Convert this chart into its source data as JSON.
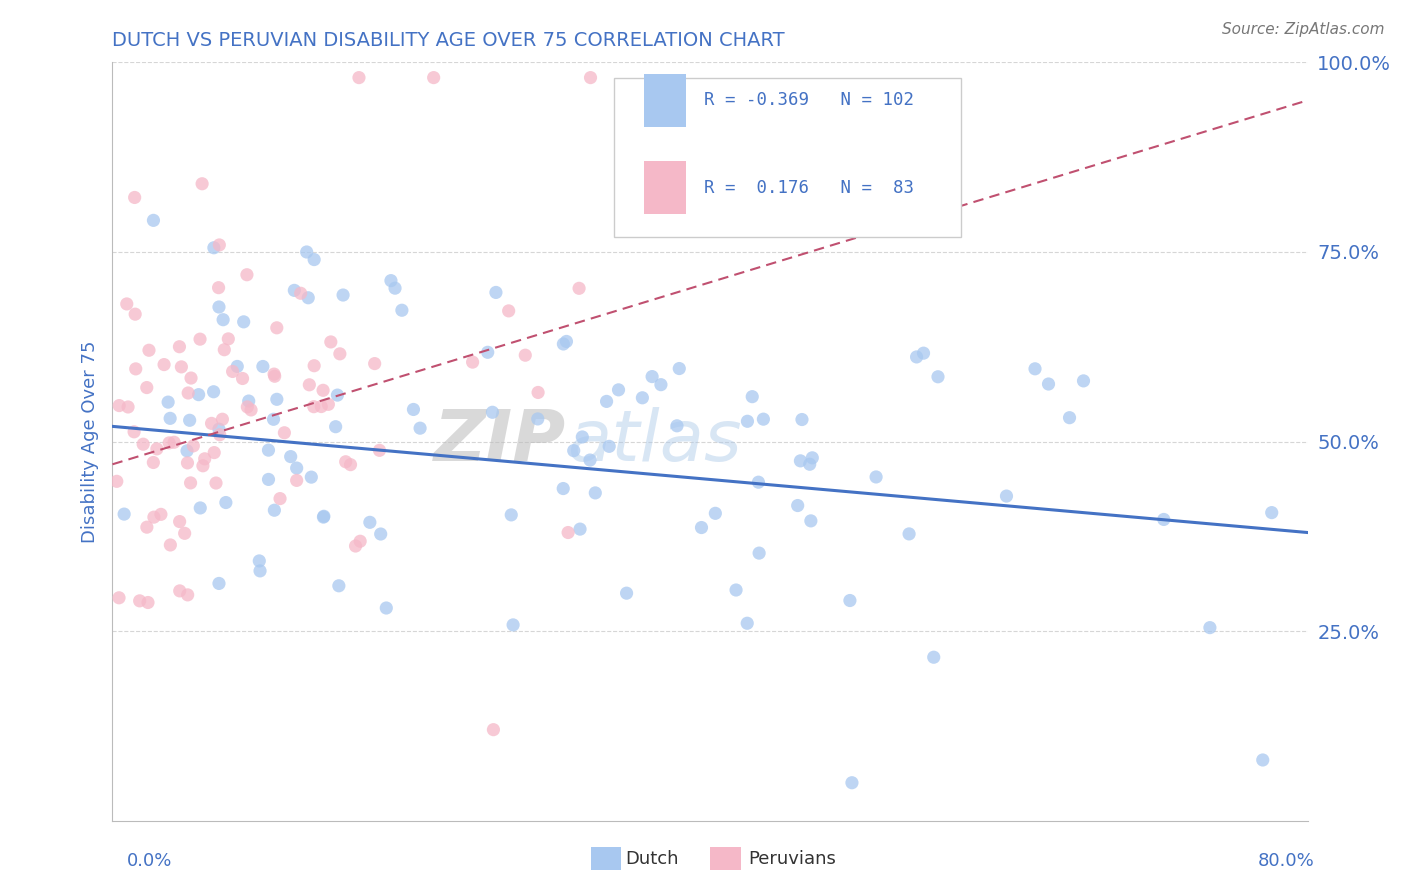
{
  "title": "DUTCH VS PERUVIAN DISABILITY AGE OVER 75 CORRELATION CHART",
  "source_text": "Source: ZipAtlas.com",
  "ylabel": "Disability Age Over 75",
  "y_right_labels": [
    "25.0%",
    "50.0%",
    "75.0%",
    "100.0%"
  ],
  "legend_dutch_R": "-0.369",
  "legend_dutch_N": "102",
  "legend_peru_R": "0.176",
  "legend_peru_N": "83",
  "dutch_color": "#a8c8f0",
  "peru_color": "#f5b8c8",
  "dutch_line_color": "#4472c4",
  "peru_line_color": "#c05070",
  "title_color": "#4472c4",
  "axis_label_color": "#4472c4",
  "text_color": "#333333",
  "background_color": "#ffffff",
  "watermark_text": "ZIPatlas",
  "dutch_R": -0.369,
  "peru_R": 0.176,
  "dutch_N": 102,
  "peru_N": 83,
  "xlim": [
    0,
    0.8
  ],
  "ylim": [
    0,
    1.0
  ],
  "dutch_line_y0": 0.52,
  "dutch_line_y1": 0.38,
  "peru_line_y0": 0.47,
  "peru_line_y1": 0.95
}
